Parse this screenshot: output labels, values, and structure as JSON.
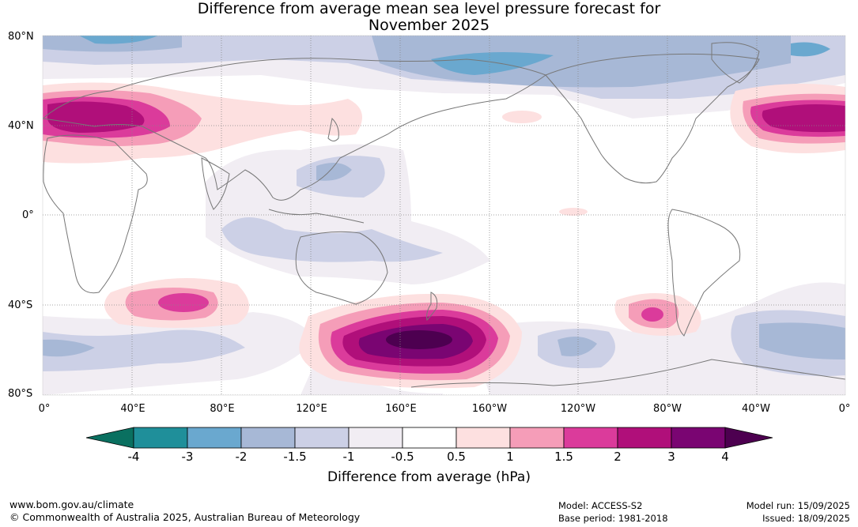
{
  "title": {
    "line1": "Difference from average mean sea level pressure forecast for",
    "line2": "November 2025"
  },
  "map": {
    "projection": "equirectangular, Pacific-centred",
    "lat_labels": [
      "80°N",
      "40°N",
      "0°",
      "40°S",
      "80°S"
    ],
    "lon_labels": [
      "0°",
      "40°E",
      "80°E",
      "120°E",
      "160°E",
      "160°W",
      "120°W",
      "80°W",
      "40°W",
      "0°"
    ],
    "land_outline_color": "#777777",
    "gridline_style": "dotted grey",
    "anomaly_regions": [
      {
        "location": "southern Europe / Mediterranean",
        "value_hPa": 2.5,
        "sign": "positive"
      },
      {
        "location": "North Atlantic west of Europe",
        "value_hPa": 2.5,
        "sign": "positive"
      },
      {
        "location": "southern Indian Ocean",
        "value_hPa": 2.0,
        "sign": "positive"
      },
      {
        "location": "Tasman Sea / south of New Zealand",
        "value_hPa": 4.0,
        "sign": "positive"
      },
      {
        "location": "southeast Pacific near Chile",
        "value_hPa": 2.0,
        "sign": "positive"
      },
      {
        "location": "Arctic / Bering Sea",
        "value_hPa": -2.0,
        "sign": "negative"
      },
      {
        "location": "South Atlantic",
        "value_hPa": -1.5,
        "sign": "negative"
      },
      {
        "location": "Southern Ocean south of Africa",
        "value_hPa": -1.0,
        "sign": "negative"
      }
    ]
  },
  "colorbar": {
    "ticks": [
      "-4",
      "-3",
      "-2",
      "-1.5",
      "-1",
      "-0.5",
      "0.5",
      "1",
      "1.5",
      "2",
      "3",
      "4"
    ],
    "colors": {
      "below_min": "#0a7060",
      "bins": [
        "#1f8f9a",
        "#6aa8cf",
        "#a7b8d6",
        "#ccd0e6",
        "#f1edf3",
        "#ffffff",
        "#fde0e0",
        "#f59db8",
        "#db3b9b",
        "#b00f7a",
        "#7a0572"
      ],
      "above_max": "#4d0050"
    },
    "label": "Difference from average (hPa)"
  },
  "footer": {
    "website": "www.bom.gov.au/climate",
    "copyright": "© Commonwealth of Australia 2025, Australian Bureau of Meteorology",
    "model": "Model: ACCESS-S2",
    "base_period": "Base period: 1981-2018",
    "model_run": "Model run: 15/09/2025",
    "issued": "Issued: 18/09/2025"
  }
}
